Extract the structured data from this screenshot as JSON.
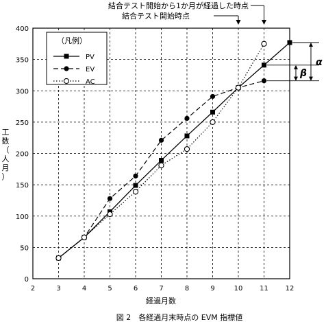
{
  "chart_data": {
    "type": "line",
    "caption": "図 2　各経過月末時点の EVM 指標値",
    "xlabel": "経過月数",
    "ylabel_chars": [
      "工",
      "数",
      "（",
      "人",
      "月",
      "）"
    ],
    "xlim": [
      2,
      12
    ],
    "ylim": [
      0,
      400
    ],
    "x_ticks": [
      2,
      3,
      4,
      5,
      6,
      7,
      8,
      9,
      10,
      11,
      12
    ],
    "y_ticks": [
      0,
      50,
      100,
      150,
      200,
      250,
      300,
      350,
      400
    ],
    "grid": true,
    "legend": {
      "title": "（凡例）",
      "position": "top-left"
    },
    "series": [
      {
        "name": "PV",
        "style": "solid",
        "marker": "filled-square",
        "x": [
          3,
          4,
          5,
          6,
          7,
          8,
          9,
          10,
          11,
          12
        ],
        "y": [
          33,
          66,
          107,
          149,
          189,
          228,
          266,
          305,
          341,
          377
        ]
      },
      {
        "name": "EV",
        "style": "dashed",
        "marker": "filled-circle",
        "x": [
          3,
          4,
          5,
          6,
          7,
          8,
          9,
          10,
          11
        ],
        "y": [
          33,
          66,
          128,
          164,
          221,
          256,
          291,
          305,
          316
        ]
      },
      {
        "name": "AC",
        "style": "dotted",
        "marker": "open-circle",
        "x": [
          3,
          4,
          5,
          6,
          7,
          8,
          9,
          10,
          11
        ],
        "y": [
          33,
          66,
          103,
          139,
          181,
          207,
          250,
          305,
          375
        ]
      }
    ],
    "annotations": [
      {
        "text": "結合テスト開始から1か月が経過した時点",
        "x": 11
      },
      {
        "text": "結合テスト開始時点",
        "x": 10
      }
    ],
    "brackets": [
      {
        "label": "α",
        "y_from": 316,
        "y_to": 377
      },
      {
        "label": "β",
        "y_from": 316,
        "y_to": 341
      }
    ]
  }
}
